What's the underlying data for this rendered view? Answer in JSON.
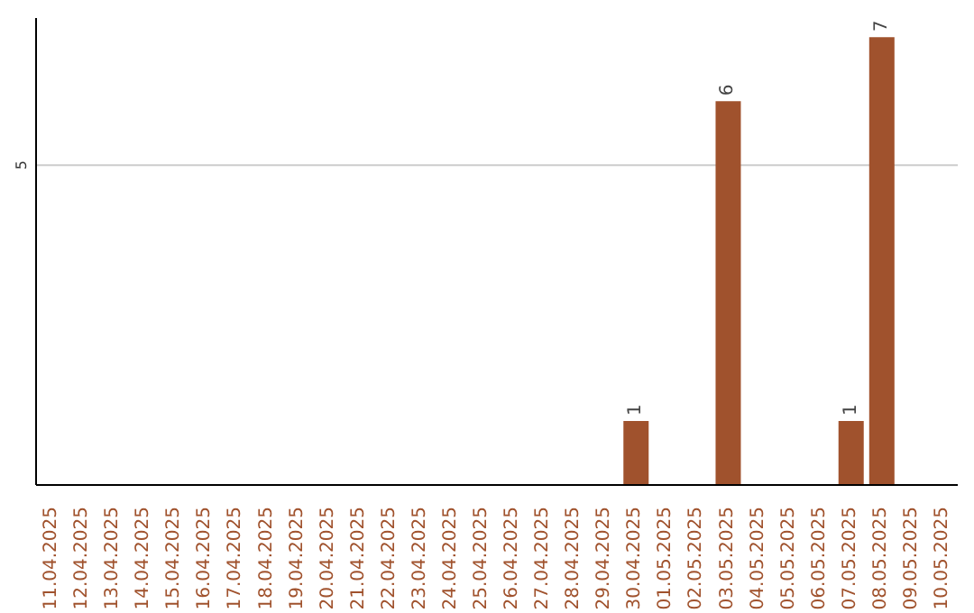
{
  "chart_data": {
    "type": "bar",
    "categories": [
      "11.04.2025",
      "12.04.2025",
      "13.04.2025",
      "14.04.2025",
      "15.04.2025",
      "16.04.2025",
      "17.04.2025",
      "18.04.2025",
      "19.04.2025",
      "20.04.2025",
      "21.04.2025",
      "22.04.2025",
      "23.04.2025",
      "24.04.2025",
      "25.04.2025",
      "26.04.2025",
      "27.04.2025",
      "28.04.2025",
      "29.04.2025",
      "30.04.2025",
      "01.05.2025",
      "02.05.2025",
      "03.05.2025",
      "04.05.2025",
      "05.05.2025",
      "06.05.2025",
      "07.05.2025",
      "08.05.2025",
      "09.05.2025",
      "10.05.2025"
    ],
    "values": [
      null,
      null,
      null,
      null,
      null,
      null,
      null,
      null,
      null,
      null,
      null,
      null,
      null,
      null,
      null,
      null,
      null,
      null,
      null,
      1,
      null,
      null,
      6,
      null,
      null,
      null,
      1,
      7,
      null,
      null
    ],
    "color": "#a0522d",
    "ylim": [
      0,
      7.3
    ],
    "yticks": [
      5
    ],
    "grid": "y",
    "data_labels": true
  }
}
